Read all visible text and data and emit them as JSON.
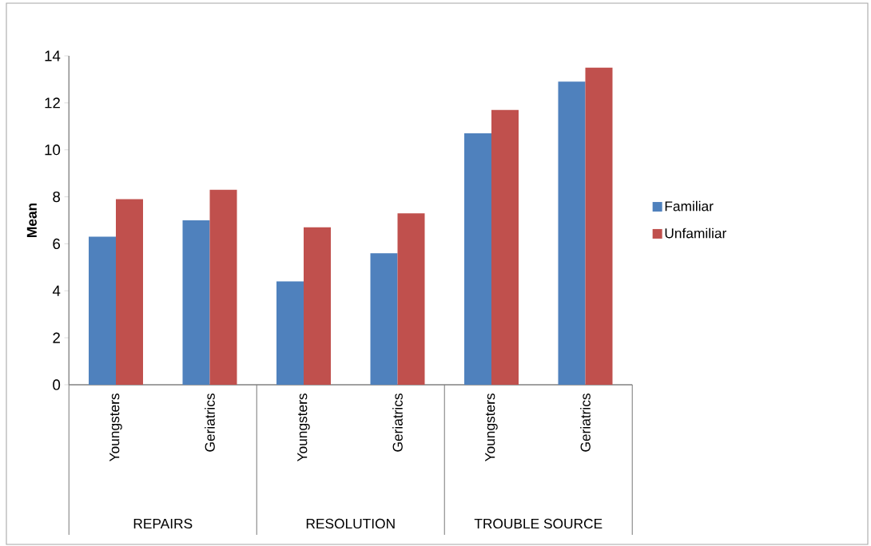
{
  "chart_data": {
    "type": "bar",
    "ylabel": "Mean",
    "categories": [
      "Youngsters",
      "Geriatrics",
      "Youngsters",
      "Geriatrics",
      "Youngsters",
      "Geriatrics"
    ],
    "annotations": [
      "REPAIRS",
      "RESOLUTION",
      "TROUBLE SOURCE"
    ],
    "series": [
      {
        "name": "Familiar",
        "color": "#4f81bd",
        "values": [
          6.3,
          7.0,
          4.4,
          5.6,
          10.7,
          12.9
        ]
      },
      {
        "name": "Unfamiliar",
        "color": "#c0504d",
        "values": [
          7.9,
          8.3,
          6.7,
          7.3,
          11.7,
          13.5
        ]
      }
    ],
    "ylim": [
      0,
      14
    ],
    "yticks": [
      0,
      2,
      4,
      6,
      8,
      10,
      12,
      14
    ],
    "grid": false,
    "legend": "right"
  }
}
